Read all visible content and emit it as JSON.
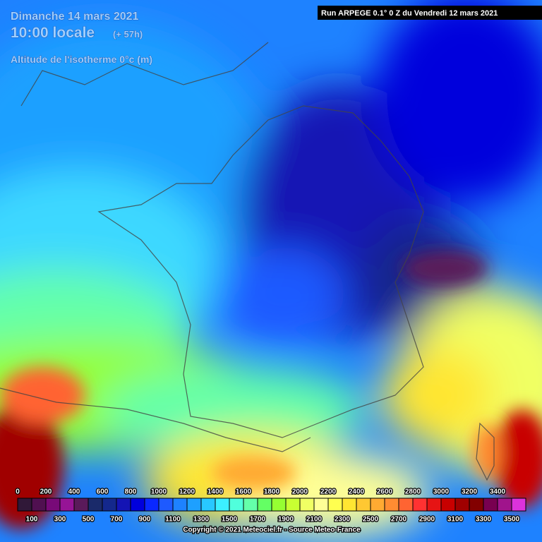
{
  "header": {
    "date": "Dimanche 14 mars 2021",
    "time": "10:00 locale",
    "lead": "(+ 57h)",
    "parameter": "Altitude de l'isotherme 0°c (m)",
    "run": "Run ARPEGE 0.1° 0 Z du Vendredi 12 mars 2021"
  },
  "legend": {
    "top_labels": [
      "0",
      "200",
      "400",
      "600",
      "800",
      "1000",
      "1200",
      "1400",
      "1600",
      "1800",
      "2000",
      "2200",
      "2400",
      "2600",
      "2800",
      "3000",
      "3200",
      "3400"
    ],
    "bottom_labels": [
      "100",
      "300",
      "500",
      "700",
      "900",
      "1100",
      "1300",
      "1500",
      "1700",
      "1900",
      "2100",
      "2300",
      "2500",
      "2700",
      "2900",
      "3100",
      "3300",
      "3500"
    ]
  },
  "footer": {
    "copyright": "Copyright © 2021 Meteociel.fr - Source Meteo-France"
  }
}
